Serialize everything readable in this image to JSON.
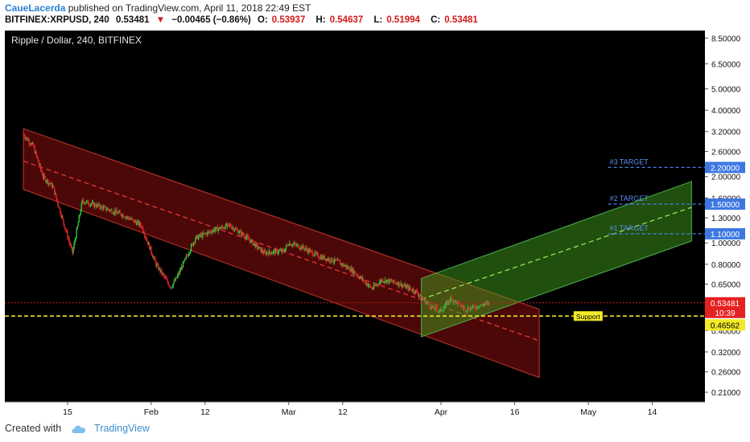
{
  "header": {
    "author": "CaueLacerda",
    "published": "published on TradingView.com, April 11, 2018 22:49 EST"
  },
  "ticker": {
    "symbol": "BITFINEX:XRPUSD, 240",
    "last": "0.53481",
    "change": "−0.00465 (−0.86%)",
    "o_label": "O:",
    "o": "0.53937",
    "h_label": "H:",
    "h": "0.54637",
    "l_label": "L:",
    "l": "0.51994",
    "c_label": "C:",
    "c": "0.53481"
  },
  "footer": {
    "created_with": "Created with",
    "brand": "TradingView"
  },
  "colors": {
    "background": "#000000",
    "candle_up": "#2fbf3a",
    "candle_down": "#e0242b",
    "red_channel": "#8b0e0e",
    "green_channel": "#3f9e1c",
    "target_line": "#4a80e8",
    "support_line": "#f2ea2a",
    "price_line": "#c81818"
  },
  "chart_data": {
    "type": "candlestick",
    "title": "Ripple / Dollar, 240, BITFINEX",
    "y_scale": "log",
    "ylim": [
      0.19,
      9.2
    ],
    "x_ticks": [
      "15",
      "Feb",
      "12",
      "Mar",
      "12",
      "Apr",
      "16",
      "May",
      "14"
    ],
    "y_ticks": [
      "8.50000",
      "6.50000",
      "5.00000",
      "4.00000",
      "3.20000",
      "2.60000",
      "2.00000",
      "1.60000",
      "1.30000",
      "1.00000",
      "0.80000",
      "0.65000",
      "0.40000",
      "0.32000",
      "0.26000",
      "0.21000"
    ],
    "price_path": [
      {
        "date": "2018-01-06",
        "value": 3.1
      },
      {
        "date": "2018-01-08",
        "value": 2.75
      },
      {
        "date": "2018-01-10",
        "value": 2.0
      },
      {
        "date": "2018-01-12",
        "value": 1.8
      },
      {
        "date": "2018-01-16",
        "value": 0.9
      },
      {
        "date": "2018-01-18",
        "value": 1.55
      },
      {
        "date": "2018-01-22",
        "value": 1.45
      },
      {
        "date": "2018-01-26",
        "value": 1.35
      },
      {
        "date": "2018-01-30",
        "value": 1.2
      },
      {
        "date": "2018-02-02",
        "value": 0.8
      },
      {
        "date": "2018-02-05",
        "value": 0.63
      },
      {
        "date": "2018-02-06",
        "value": 0.68
      },
      {
        "date": "2018-02-10",
        "value": 1.05
      },
      {
        "date": "2018-02-14",
        "value": 1.15
      },
      {
        "date": "2018-02-17",
        "value": 1.2
      },
      {
        "date": "2018-02-20",
        "value": 1.08
      },
      {
        "date": "2018-02-24",
        "value": 0.9
      },
      {
        "date": "2018-02-28",
        "value": 0.92
      },
      {
        "date": "2018-03-01",
        "value": 1.0
      },
      {
        "date": "2018-03-04",
        "value": 0.95
      },
      {
        "date": "2018-03-07",
        "value": 0.87
      },
      {
        "date": "2018-03-11",
        "value": 0.82
      },
      {
        "date": "2018-03-14",
        "value": 0.75
      },
      {
        "date": "2018-03-18",
        "value": 0.62
      },
      {
        "date": "2018-03-20",
        "value": 0.68
      },
      {
        "date": "2018-03-23",
        "value": 0.66
      },
      {
        "date": "2018-03-27",
        "value": 0.6
      },
      {
        "date": "2018-03-30",
        "value": 0.51
      },
      {
        "date": "2018-04-01",
        "value": 0.49
      },
      {
        "date": "2018-04-03",
        "value": 0.56
      },
      {
        "date": "2018-04-06",
        "value": 0.5
      },
      {
        "date": "2018-04-09",
        "value": 0.52
      },
      {
        "date": "2018-04-11",
        "value": 0.53481
      }
    ],
    "drawings": {
      "red_channel": {
        "start": "2018-01-06",
        "end": "2018-04-21",
        "upper_start": 3.3,
        "upper_end": 0.5,
        "mid_start": 2.35,
        "mid_end": 0.36,
        "lower_start": 1.75,
        "lower_end": 0.245
      },
      "green_channel": {
        "start": "2018-03-28",
        "end": "2018-05-22",
        "upper_start": 0.69,
        "upper_end": 1.9,
        "mid_start": 0.555,
        "mid_end": 1.45,
        "lower_start": 0.375,
        "lower_end": 1.02
      },
      "targets": [
        {
          "label": "#3 TARGET",
          "value": "2.20000"
        },
        {
          "label": "#2 TARGET",
          "value": "1.50000"
        },
        {
          "label": "#1 TARGET",
          "value": "1.10000"
        }
      ],
      "support": {
        "label": "Support",
        "value": "0.46562"
      },
      "last_price": {
        "value": "0.53481",
        "countdown": "10:39"
      }
    }
  }
}
